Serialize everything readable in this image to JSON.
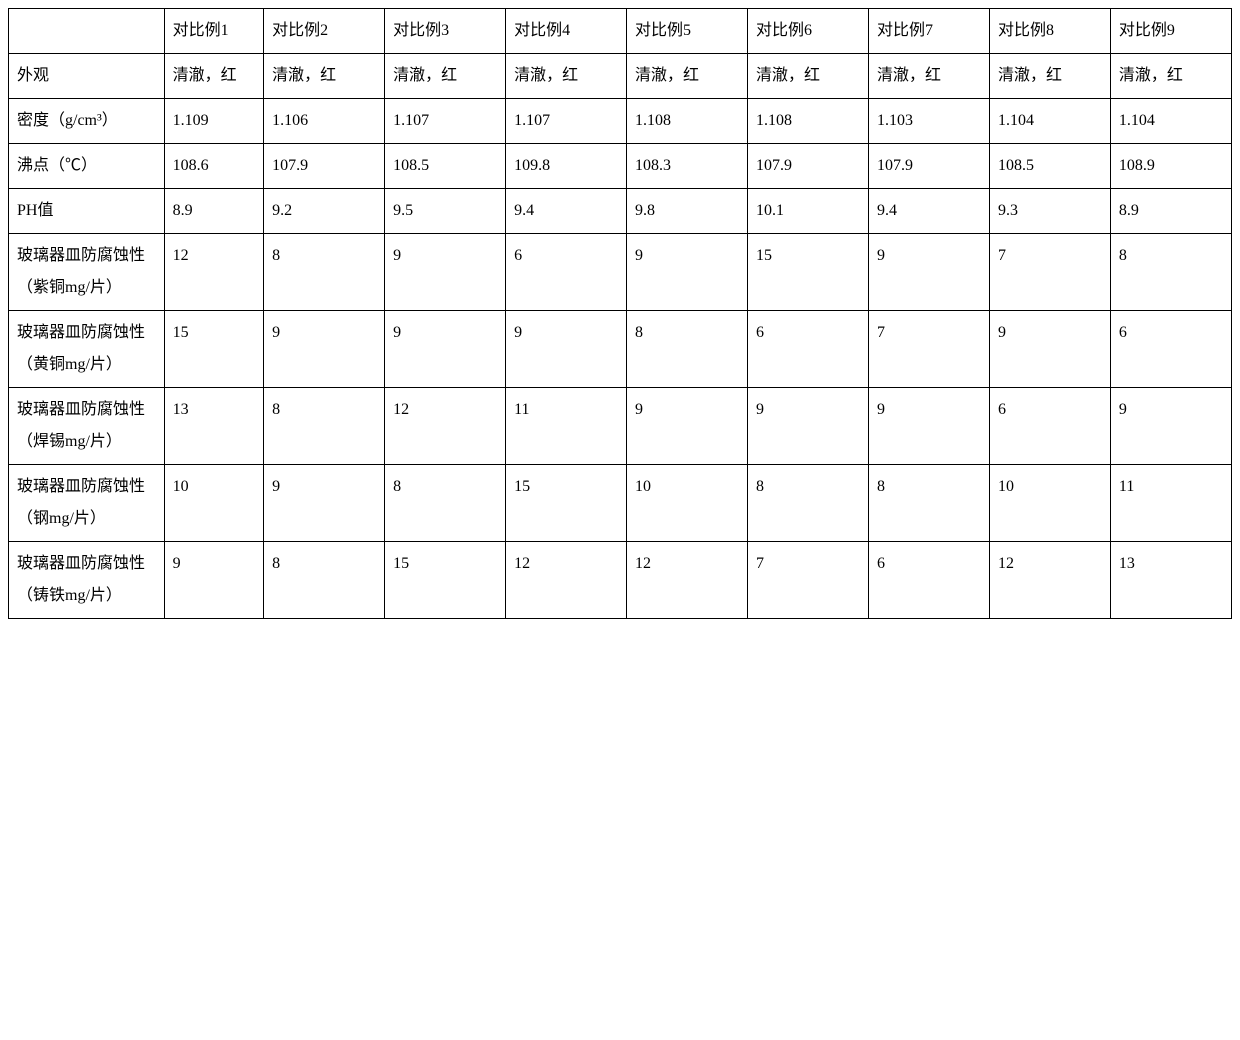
{
  "table": {
    "headers": [
      "",
      "对比例1",
      "对比例2",
      "对比例3",
      "对比例4",
      "对比例5",
      "对比例6",
      "对比例7",
      "对比例8",
      "对比例9"
    ],
    "rows": [
      {
        "label": "外观",
        "values": [
          "清澈，红",
          "清澈，红",
          "清澈，红",
          "清澈，红",
          "清澈，红",
          "清澈，红",
          "清澈，红",
          "清澈，红",
          "清澈，红"
        ]
      },
      {
        "label": "密度（g/cm³）",
        "values": [
          "1.109",
          "1.106",
          "1.107",
          "1.107",
          "1.108",
          "1.108",
          "1.103",
          "1.104",
          "1.104"
        ]
      },
      {
        "label": "沸点（℃）",
        "values": [
          "108.6",
          "107.9",
          "108.5",
          "109.8",
          "108.3",
          "107.9",
          "107.9",
          "108.5",
          "108.9"
        ]
      },
      {
        "label": "PH值",
        "values": [
          "8.9",
          "9.2",
          "9.5",
          "9.4",
          "9.8",
          "10.1",
          "9.4",
          "9.3",
          "8.9"
        ]
      },
      {
        "label": "玻璃器皿防腐蚀性（紫铜mg/片）",
        "values": [
          "12",
          "8",
          "9",
          "6",
          "9",
          "15",
          "9",
          "7",
          "8"
        ]
      },
      {
        "label": "玻璃器皿防腐蚀性（黄铜mg/片）",
        "values": [
          "15",
          "9",
          "9",
          "9",
          "8",
          "6",
          "7",
          "9",
          "6"
        ]
      },
      {
        "label": "玻璃器皿防腐蚀性（焊锡mg/片）",
        "values": [
          "13",
          "8",
          "12",
          "11",
          "9",
          "9",
          "9",
          "6",
          "9"
        ]
      },
      {
        "label": "玻璃器皿防腐蚀性（钢mg/片）",
        "values": [
          "10",
          "9",
          "8",
          "15",
          "10",
          "8",
          "8",
          "10",
          "11"
        ]
      },
      {
        "label": "玻璃器皿防腐蚀性（铸铁mg/片）",
        "values": [
          "9",
          "8",
          "15",
          "12",
          "12",
          "7",
          "6",
          "12",
          "13"
        ]
      }
    ],
    "styling": {
      "border_color": "#000000",
      "background_color": "#ffffff",
      "text_color": "#000000",
      "font_size": 16,
      "line_height": 2.0,
      "cell_padding": "6px 8px",
      "border_width": 1.5
    }
  }
}
